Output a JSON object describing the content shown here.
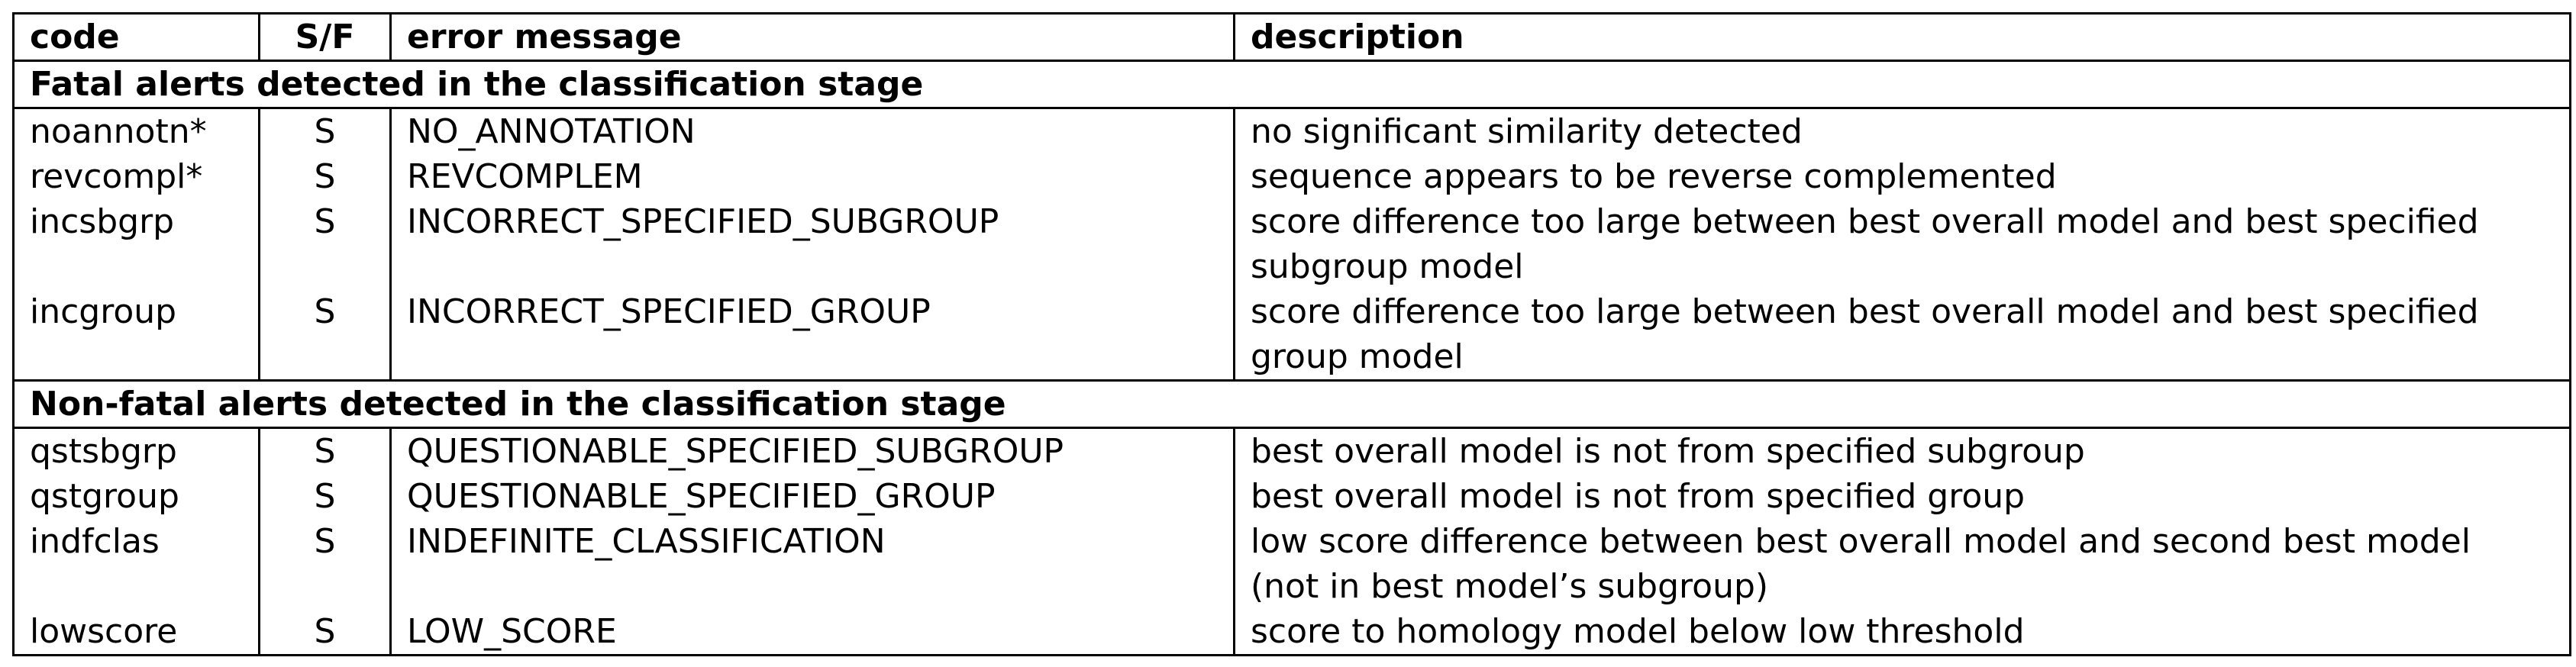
{
  "headers": {
    "code": "code",
    "sf": "S/F",
    "message": "error message",
    "description": "description"
  },
  "sections": [
    {
      "title": "Fatal alerts detected in the classification stage",
      "rows": [
        {
          "code": "noannotn*",
          "sf": "S",
          "message": "NO_ANNOTATION",
          "description": "no significant similarity detected"
        },
        {
          "code": "revcompl*",
          "sf": "S",
          "message": "REVCOMPLEM",
          "description": "sequence appears to be reverse complemented"
        },
        {
          "code": "incsbgrp",
          "sf": "S",
          "message": "INCORRECT_SPECIFIED_SUBGROUP",
          "description": "score difference too large between best overall model and best specified subgroup model"
        },
        {
          "code": "incgroup",
          "sf": "S",
          "message": "INCORRECT_SPECIFIED_GROUP",
          "description": "score difference too large between best overall model and best specified group model"
        }
      ]
    },
    {
      "title": "Non-fatal alerts detected in the classification stage",
      "rows": [
        {
          "code": "qstsbgrp",
          "sf": "S",
          "message": "QUESTIONABLE_SPECIFIED_SUBGROUP",
          "description": "best overall model is not from specified subgroup"
        },
        {
          "code": "qstgroup",
          "sf": "S",
          "message": "QUESTIONABLE_SPECIFIED_GROUP",
          "description": "best overall model is not from specified group"
        },
        {
          "code": "indfclas",
          "sf": "S",
          "message": "INDEFINITE_CLASSIFICATION",
          "description": "low score difference between best overall model and second best model (not in best model’s subgroup)"
        },
        {
          "code": "lowscore",
          "sf": "S",
          "message": "LOW_SCORE",
          "description": "score to homology model below low threshold"
        }
      ]
    }
  ]
}
